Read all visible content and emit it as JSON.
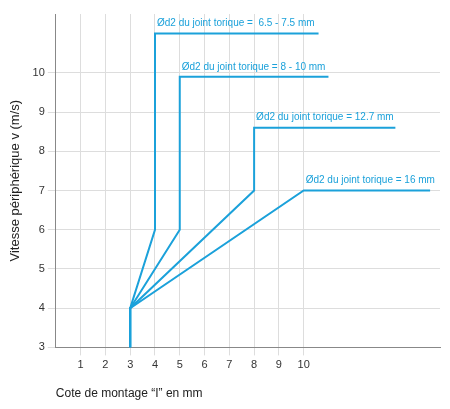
{
  "chart_data": {
    "type": "line",
    "x_label": "Cote de montage “I” en mm",
    "y_label": "Vitesse périphérique v (m/s)",
    "series": [
      {
        "name": "Ød2 du joint torique =  6.5 - 7.5 mm",
        "color": "#1ba1da",
        "x": [
          3,
          3,
          4,
          4,
          10.6
        ],
        "values": [
          3,
          4,
          6,
          11,
          11
        ]
      },
      {
        "name": "Ød2 du joint torique = 8 - 10 mm",
        "color": "#1ba1da",
        "x": [
          3,
          3,
          5,
          5,
          11
        ],
        "values": [
          3,
          4,
          6,
          9.9,
          9.9
        ]
      },
      {
        "name": "Ød2 du joint torique = 12.7 mm",
        "color": "#1ba1da",
        "x": [
          3,
          3,
          8,
          8,
          13.7
        ],
        "values": [
          3,
          4,
          7,
          8.6,
          8.6
        ]
      },
      {
        "name": "Ød2 du joint torique = 16 mm",
        "color": "#1ba1da",
        "x": [
          3,
          3,
          10,
          15.1
        ],
        "values": [
          3,
          4,
          7,
          7
        ]
      }
    ],
    "xlim": [
      0,
      15.5
    ],
    "xticks": [
      1,
      2,
      3,
      4,
      5,
      6,
      7,
      8,
      9,
      10
    ],
    "ylim": [
      3,
      11.5
    ],
    "yticks": [
      3,
      4,
      5,
      6,
      7,
      8,
      9,
      10
    ],
    "grid": true
  }
}
